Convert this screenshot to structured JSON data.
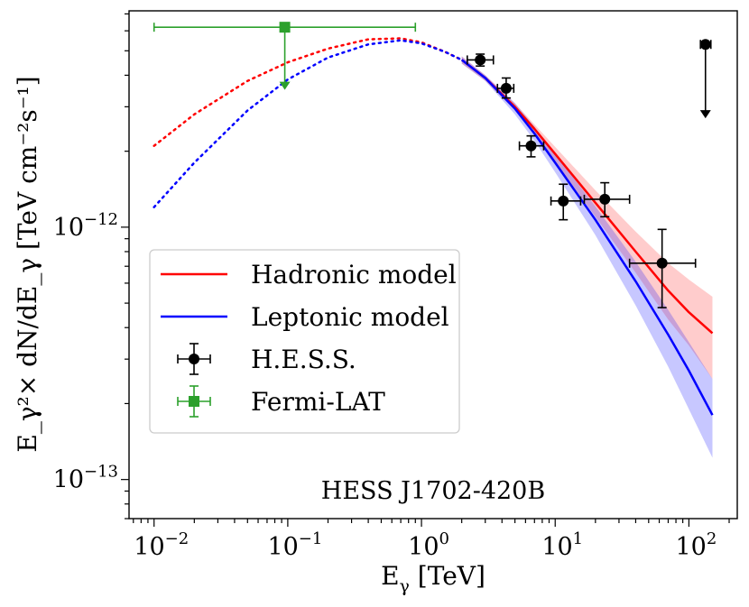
{
  "chart_data": {
    "type": "line",
    "title": "",
    "annotation": "HESS J1702-420B",
    "xlabel": {
      "main": "E",
      "sub": "γ",
      "unit": " [TeV]"
    },
    "ylabel": {
      "text": "E_γ²× dN/dE_γ [TeV cm⁻²s⁻¹]"
    },
    "xscale": "log",
    "yscale": "log",
    "xlim": [
      0.0065,
      230
    ],
    "ylim": [
      7e-14,
      7.2e-12
    ],
    "xticks": [
      {
        "base": "10",
        "exp": "−2",
        "value": 0.01
      },
      {
        "base": "10",
        "exp": "−1",
        "value": 0.1
      },
      {
        "base": "10",
        "exp": "0",
        "value": 1
      },
      {
        "base": "10",
        "exp": "1",
        "value": 10
      },
      {
        "base": "10",
        "exp": "2",
        "value": 100
      }
    ],
    "yticks": [
      {
        "base": "10",
        "exp": "−13",
        "value": 1e-13
      },
      {
        "base": "10",
        "exp": "−12",
        "value": 1e-12
      }
    ],
    "legend": {
      "position": "lower-left",
      "entries": [
        {
          "label": "Hadronic model",
          "kind": "line",
          "color": "#ff0000"
        },
        {
          "label": "Leptonic model",
          "kind": "line",
          "color": "#0000ff"
        },
        {
          "label": "H.E.S.S.",
          "kind": "marker-circle",
          "color": "#000000"
        },
        {
          "label": "Fermi-LAT",
          "kind": "marker-square",
          "color": "#2ca02c"
        }
      ]
    },
    "series": [
      {
        "name": "Hadronic model",
        "color": "#ff0000",
        "dotted_until": 2,
        "x": [
          0.01,
          0.02,
          0.05,
          0.1,
          0.2,
          0.4,
          0.7,
          1.0,
          1.5,
          2.0,
          3.0,
          5.0,
          7.0,
          10,
          20,
          40,
          70,
          100,
          150
        ],
        "y": [
          2.1e-12,
          2.8e-12,
          3.8e-12,
          4.5e-12,
          5.1e-12,
          5.55e-12,
          5.6e-12,
          5.4e-12,
          4.95e-12,
          4.6e-12,
          3.9e-12,
          3e-12,
          2.45e-12,
          1.95e-12,
          1.25e-12,
          8e-13,
          5.6e-13,
          4.6e-13,
          3.8e-13
        ],
        "band_lower": [
          4.45e-12,
          3.8e-12,
          2.9e-12,
          2.35e-12,
          1.82e-12,
          1.1e-12,
          6.6e-13,
          4.3e-13,
          3.4e-13,
          2.5e-13
        ],
        "band_upper": [
          4.75e-12,
          4e-12,
          3.1e-12,
          2.55e-12,
          2.08e-12,
          1.4e-12,
          9.6e-13,
          7.2e-13,
          6.2e-13,
          5.3e-13
        ]
      },
      {
        "name": "Leptonic model",
        "color": "#0000ff",
        "dotted_until": 2,
        "x": [
          0.01,
          0.02,
          0.05,
          0.1,
          0.2,
          0.4,
          0.7,
          1.0,
          1.5,
          2.0,
          3.0,
          5.0,
          7.0,
          10,
          20,
          40,
          70,
          100,
          150
        ],
        "y": [
          1.2e-12,
          1.8e-12,
          2.9e-12,
          3.85e-12,
          4.7e-12,
          5.3e-12,
          5.5e-12,
          5.35e-12,
          4.95e-12,
          4.6e-12,
          3.9e-12,
          2.95e-12,
          2.35e-12,
          1.8e-12,
          1.07e-12,
          6.1e-13,
          3.75e-13,
          2.7e-13,
          1.8e-13
        ],
        "band_lower": [
          4.45e-12,
          3.8e-12,
          2.8e-12,
          2.2e-12,
          1.65e-12,
          9.3e-13,
          4.9e-13,
          2.8e-13,
          1.9e-13,
          1.22e-13
        ],
        "band_upper": [
          4.75e-12,
          4e-12,
          3.1e-12,
          2.5e-12,
          1.95e-12,
          1.21e-12,
          7.3e-13,
          4.7e-13,
          3.5e-13,
          2.5e-13
        ]
      }
    ],
    "hess_points": [
      {
        "x": 2.75,
        "y": 4.6e-12,
        "xlo": 2.2,
        "xhi": 3.45,
        "ylo": 4.35e-12,
        "yhi": 4.85e-12
      },
      {
        "x": 4.3,
        "y": 3.55e-12,
        "xlo": 3.7,
        "xhi": 4.9,
        "ylo": 3.25e-12,
        "yhi": 3.9e-12
      },
      {
        "x": 6.6,
        "y": 2.1e-12,
        "xlo": 5.4,
        "xhi": 8.2,
        "ylo": 1.9e-12,
        "yhi": 2.3e-12
      },
      {
        "x": 11.5,
        "y": 1.27e-12,
        "xlo": 9.3,
        "xhi": 15.5,
        "ylo": 1.07e-12,
        "yhi": 1.48e-12
      },
      {
        "x": 23.5,
        "y": 1.29e-12,
        "xlo": 16.5,
        "xhi": 36,
        "ylo": 1.1e-12,
        "yhi": 1.5e-12
      },
      {
        "x": 63,
        "y": 7.2e-13,
        "xlo": 36,
        "xhi": 112,
        "ylo": 4.8e-13,
        "yhi": 9.8e-13
      }
    ],
    "hess_upper_limit": {
      "x": 133,
      "y": 5.3e-12,
      "xlo": 122,
      "xhi": 146,
      "arrow_to": 2.7e-12
    },
    "fermi_point": {
      "x": 0.095,
      "y": 6.2e-12,
      "xlo": 0.01,
      "xhi": 0.9,
      "arrow_to": 3.5e-12
    },
    "colors": {
      "hadronic": "#ff0000",
      "leptonic": "#0000ff",
      "hess": "#000000",
      "fermi": "#2ca02c"
    }
  }
}
